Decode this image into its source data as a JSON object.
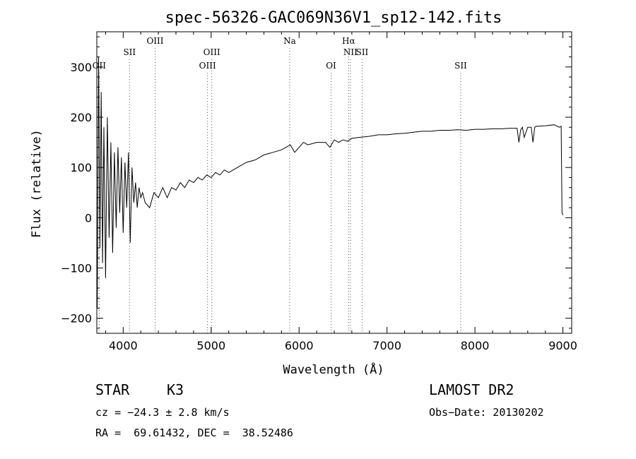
{
  "chart_data": {
    "type": "line",
    "title": "spec-56326-GAC069N36V1_sp12-142.fits",
    "xlabel": "Wavelength (Å)",
    "ylabel": "Flux (relative)",
    "xlim": [
      3700,
      9100
    ],
    "ylim": [
      -230,
      370
    ],
    "xticks": [
      4000,
      5000,
      6000,
      7000,
      8000,
      9000
    ],
    "xtick_labels": [
      "4000",
      "5000",
      "6000",
      "7000",
      "8000",
      "9000"
    ],
    "yticks": [
      -200,
      -100,
      0,
      100,
      200,
      300
    ],
    "ytick_labels": [
      "−200",
      "−100",
      "0",
      "100",
      "200",
      "300"
    ],
    "grid": false,
    "spectral_lines": [
      {
        "label": "OII",
        "wavelength": 3727,
        "row": 3
      },
      {
        "label": "SII",
        "wavelength": 4072,
        "row": 2
      },
      {
        "label": "OIII",
        "wavelength": 4363,
        "row": 1
      },
      {
        "label": "OIII",
        "wavelength": 4959,
        "row": 3
      },
      {
        "label": "OIII",
        "wavelength": 5007,
        "row": 2
      },
      {
        "label": "Na",
        "wavelength": 5893,
        "row": 1
      },
      {
        "label": "OI",
        "wavelength": 6364,
        "row": 3
      },
      {
        "label": "Hα",
        "wavelength": 6563,
        "row": 1
      },
      {
        "label": "NII",
        "wavelength": 6584,
        "row": 2
      },
      {
        "label": "SII",
        "wavelength": 6717,
        "row": 2
      },
      {
        "label": "SII",
        "wavelength": 7838,
        "row": 3
      }
    ],
    "series": [
      {
        "x": [
          3705,
          3720,
          3735,
          3750,
          3765,
          3780,
          3800,
          3820,
          3840,
          3860,
          3880,
          3900,
          3920,
          3940,
          3960,
          3980,
          4000,
          4020,
          4040,
          4060,
          4080,
          4100,
          4120,
          4140,
          4160,
          4180,
          4200,
          4220,
          4250,
          4300,
          4350,
          4400,
          4450,
          4500,
          4550,
          4600,
          4650,
          4700,
          4750,
          4800,
          4850,
          4900,
          4950,
          5000,
          5050,
          5100,
          5150,
          5200,
          5300,
          5400,
          5500,
          5600,
          5700,
          5800,
          5850,
          5900,
          5950,
          6000,
          6050,
          6100,
          6200,
          6300,
          6350,
          6400,
          6450,
          6500,
          6550,
          6600,
          6700,
          6800,
          6900,
          7000,
          7100,
          7200,
          7300,
          7400,
          7500,
          7600,
          7700,
          7800,
          7900,
          8000,
          8100,
          8200,
          8300,
          8400,
          8480,
          8500,
          8520,
          8540,
          8560,
          8600,
          8640,
          8660,
          8680,
          8700,
          8800,
          8900,
          8960,
          8980,
          8990,
          9000
        ],
        "y": [
          -180,
          320,
          -60,
          250,
          -90,
          180,
          -120,
          200,
          -40,
          150,
          -70,
          130,
          -20,
          140,
          10,
          120,
          -30,
          110,
          20,
          130,
          -50,
          100,
          30,
          70,
          20,
          60,
          40,
          50,
          30,
          20,
          50,
          40,
          60,
          40,
          60,
          55,
          70,
          60,
          75,
          70,
          80,
          75,
          85,
          80,
          90,
          85,
          95,
          90,
          100,
          110,
          115,
          125,
          130,
          135,
          140,
          145,
          130,
          140,
          150,
          145,
          150,
          150,
          140,
          155,
          150,
          155,
          152,
          158,
          160,
          162,
          165,
          165,
          167,
          168,
          170,
          172,
          172,
          174,
          174,
          175,
          174,
          176,
          176,
          177,
          177,
          178,
          178,
          150,
          175,
          180,
          160,
          180,
          180,
          150,
          180,
          182,
          183,
          185,
          180,
          182,
          10,
          5
        ]
      }
    ]
  },
  "info": {
    "object_class": "STAR",
    "subclass": "K3",
    "cz": "cz = −24.3 ± 2.8 km/s",
    "radec": "RA =  69.61432, DEC =  38.52486",
    "survey": "LAMOST DR2",
    "obs_date": "Obs−Date: 20130202"
  }
}
